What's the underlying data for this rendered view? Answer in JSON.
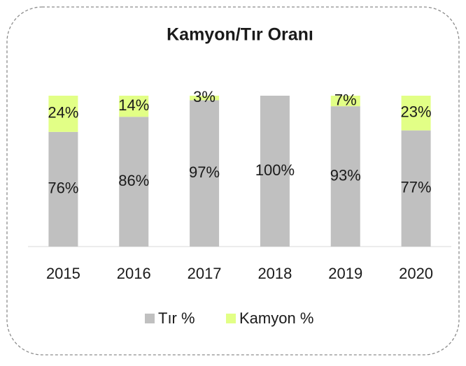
{
  "chart_data": {
    "type": "stacked_bar",
    "title": "Kamyon/Tır Oranı",
    "categories": [
      "2015",
      "2016",
      "2017",
      "2018",
      "2019",
      "2020"
    ],
    "series": [
      {
        "name": "Tır %",
        "color": "#c0c0c0",
        "values": [
          76,
          86,
          97,
          100,
          93,
          77
        ],
        "value_labels": [
          "76%",
          "86%",
          "97%",
          "100%",
          "93%",
          "77%"
        ]
      },
      {
        "name": "Kamyon %",
        "color": "#e2ff86",
        "values": [
          24,
          14,
          3,
          0,
          7,
          23
        ],
        "value_labels": [
          "24%",
          "14%",
          "3%",
          null,
          "7%",
          "23%"
        ]
      }
    ],
    "ylim": [
      0,
      100
    ],
    "legend": "bottom"
  }
}
